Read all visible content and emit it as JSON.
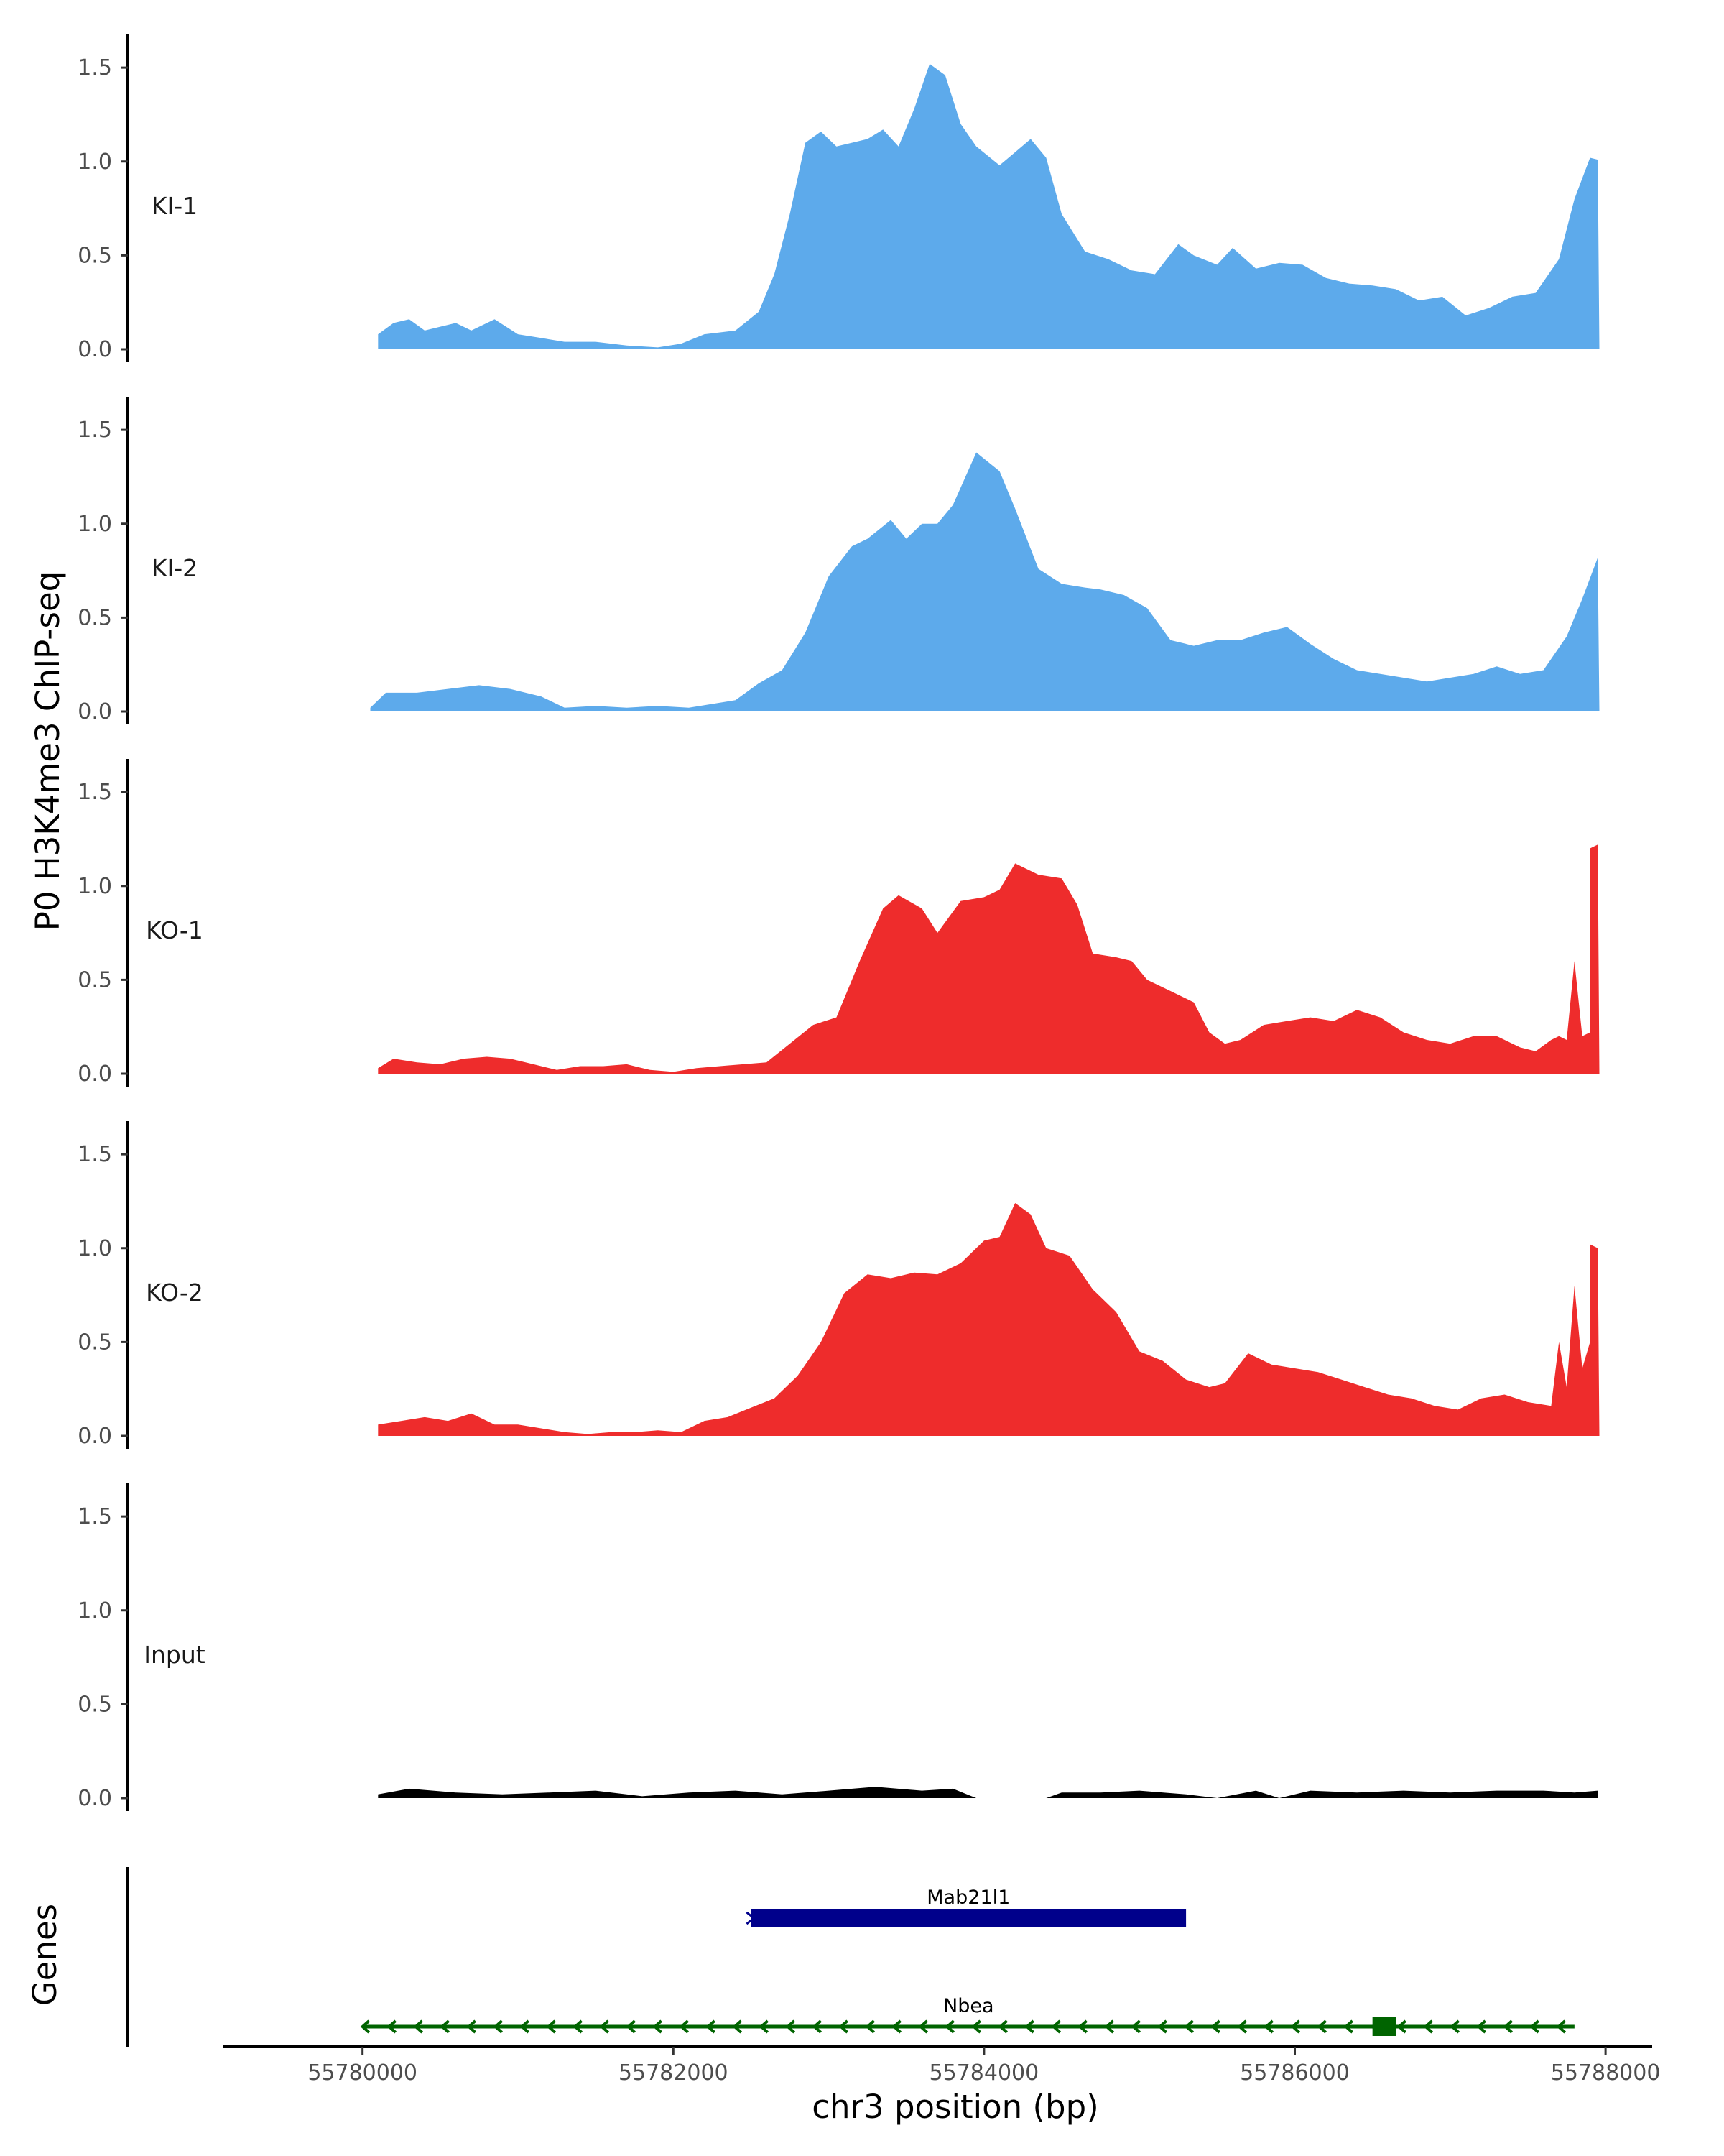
{
  "chart_data": {
    "type": "area",
    "ylabel": "P0 H3K4me3 ChIP-seq",
    "xlabel": "chr3 position (bp)",
    "gene_track_label": "Genes",
    "xlim": [
      55779100,
      55788300
    ],
    "ylim": [
      0,
      1.6
    ],
    "y_ticks": [
      0,
      0.5,
      1,
      1.5
    ],
    "y_tick_labels": [
      "0.0",
      "0.5",
      "1.0",
      "1.5"
    ],
    "x_ticks": [
      55780000,
      55782000,
      55784000,
      55786000,
      55788000
    ],
    "x_tick_labels": [
      "55780000",
      "55782000",
      "55784000",
      "55786000",
      "55788000"
    ],
    "grid": false,
    "tracks": [
      {
        "name": "KI-1",
        "color": "#5DAAEB",
        "points": [
          [
            55780100,
            0.08
          ],
          [
            55780200,
            0.14
          ],
          [
            55780300,
            0.16
          ],
          [
            55780400,
            0.1
          ],
          [
            55780500,
            0.12
          ],
          [
            55780600,
            0.14
          ],
          [
            55780700,
            0.1
          ],
          [
            55780850,
            0.16
          ],
          [
            55781000,
            0.08
          ],
          [
            55781150,
            0.06
          ],
          [
            55781300,
            0.04
          ],
          [
            55781500,
            0.04
          ],
          [
            55781700,
            0.02
          ],
          [
            55781900,
            0.01
          ],
          [
            55782050,
            0.03
          ],
          [
            55782200,
            0.08
          ],
          [
            55782400,
            0.1
          ],
          [
            55782550,
            0.2
          ],
          [
            55782650,
            0.4
          ],
          [
            55782750,
            0.72
          ],
          [
            55782850,
            1.1
          ],
          [
            55782950,
            1.16
          ],
          [
            55783050,
            1.08
          ],
          [
            55783150,
            1.1
          ],
          [
            55783250,
            1.12
          ],
          [
            55783350,
            1.17
          ],
          [
            55783450,
            1.08
          ],
          [
            55783550,
            1.28
          ],
          [
            55783650,
            1.52
          ],
          [
            55783750,
            1.46
          ],
          [
            55783850,
            1.2
          ],
          [
            55783950,
            1.08
          ],
          [
            55784100,
            0.98
          ],
          [
            55784200,
            1.05
          ],
          [
            55784300,
            1.12
          ],
          [
            55784400,
            1.02
          ],
          [
            55784500,
            0.72
          ],
          [
            55784650,
            0.52
          ],
          [
            55784800,
            0.48
          ],
          [
            55784950,
            0.42
          ],
          [
            55785100,
            0.4
          ],
          [
            55785250,
            0.56
          ],
          [
            55785350,
            0.5
          ],
          [
            55785500,
            0.45
          ],
          [
            55785600,
            0.54
          ],
          [
            55785750,
            0.43
          ],
          [
            55785900,
            0.46
          ],
          [
            55786050,
            0.45
          ],
          [
            55786200,
            0.38
          ],
          [
            55786350,
            0.35
          ],
          [
            55786500,
            0.34
          ],
          [
            55786650,
            0.32
          ],
          [
            55786800,
            0.26
          ],
          [
            55786950,
            0.28
          ],
          [
            55787100,
            0.18
          ],
          [
            55787250,
            0.22
          ],
          [
            55787400,
            0.28
          ],
          [
            55787550,
            0.3
          ],
          [
            55787700,
            0.48
          ],
          [
            55787800,
            0.8
          ],
          [
            55787900,
            1.02
          ],
          [
            55787950,
            1.01
          ],
          [
            55787960,
            0
          ]
        ]
      },
      {
        "name": "KI-2",
        "color": "#5DAAEB",
        "points": [
          [
            55780050,
            0.02
          ],
          [
            55780150,
            0.1
          ],
          [
            55780350,
            0.1
          ],
          [
            55780550,
            0.12
          ],
          [
            55780750,
            0.14
          ],
          [
            55780950,
            0.12
          ],
          [
            55781150,
            0.08
          ],
          [
            55781300,
            0.02
          ],
          [
            55781500,
            0.03
          ],
          [
            55781700,
            0.02
          ],
          [
            55781900,
            0.03
          ],
          [
            55782100,
            0.02
          ],
          [
            55782250,
            0.04
          ],
          [
            55782400,
            0.06
          ],
          [
            55782550,
            0.15
          ],
          [
            55782700,
            0.22
          ],
          [
            55782850,
            0.42
          ],
          [
            55783000,
            0.72
          ],
          [
            55783150,
            0.88
          ],
          [
            55783250,
            0.92
          ],
          [
            55783400,
            1.02
          ],
          [
            55783500,
            0.92
          ],
          [
            55783600,
            1.0
          ],
          [
            55783700,
            1.0
          ],
          [
            55783800,
            1.1
          ],
          [
            55783950,
            1.38
          ],
          [
            55784100,
            1.28
          ],
          [
            55784200,
            1.08
          ],
          [
            55784350,
            0.76
          ],
          [
            55784500,
            0.68
          ],
          [
            55784650,
            0.66
          ],
          [
            55784750,
            0.65
          ],
          [
            55784900,
            0.62
          ],
          [
            55785050,
            0.55
          ],
          [
            55785200,
            0.38
          ],
          [
            55785350,
            0.35
          ],
          [
            55785500,
            0.38
          ],
          [
            55785650,
            0.38
          ],
          [
            55785800,
            0.42
          ],
          [
            55785950,
            0.45
          ],
          [
            55786100,
            0.36
          ],
          [
            55786250,
            0.28
          ],
          [
            55786400,
            0.22
          ],
          [
            55786550,
            0.2
          ],
          [
            55786700,
            0.18
          ],
          [
            55786850,
            0.16
          ],
          [
            55787000,
            0.18
          ],
          [
            55787150,
            0.2
          ],
          [
            55787300,
            0.24
          ],
          [
            55787450,
            0.2
          ],
          [
            55787600,
            0.22
          ],
          [
            55787750,
            0.4
          ],
          [
            55787850,
            0.6
          ],
          [
            55787950,
            0.82
          ],
          [
            55787960,
            0
          ]
        ]
      },
      {
        "name": "KO-1",
        "color": "#EE2C2C",
        "points": [
          [
            55780100,
            0.03
          ],
          [
            55780200,
            0.08
          ],
          [
            55780350,
            0.06
          ],
          [
            55780500,
            0.05
          ],
          [
            55780650,
            0.08
          ],
          [
            55780800,
            0.09
          ],
          [
            55780950,
            0.08
          ],
          [
            55781100,
            0.05
          ],
          [
            55781250,
            0.02
          ],
          [
            55781400,
            0.04
          ],
          [
            55781550,
            0.04
          ],
          [
            55781700,
            0.05
          ],
          [
            55781850,
            0.02
          ],
          [
            55782000,
            0.01
          ],
          [
            55782150,
            0.03
          ],
          [
            55782300,
            0.04
          ],
          [
            55782450,
            0.05
          ],
          [
            55782600,
            0.06
          ],
          [
            55782750,
            0.16
          ],
          [
            55782900,
            0.26
          ],
          [
            55783050,
            0.3
          ],
          [
            55783200,
            0.6
          ],
          [
            55783350,
            0.88
          ],
          [
            55783450,
            0.95
          ],
          [
            55783600,
            0.88
          ],
          [
            55783700,
            0.75
          ],
          [
            55783850,
            0.92
          ],
          [
            55784000,
            0.94
          ],
          [
            55784100,
            0.98
          ],
          [
            55784200,
            1.12
          ],
          [
            55784350,
            1.06
          ],
          [
            55784500,
            1.04
          ],
          [
            55784600,
            0.9
          ],
          [
            55784700,
            0.64
          ],
          [
            55784850,
            0.62
          ],
          [
            55784950,
            0.6
          ],
          [
            55785050,
            0.5
          ],
          [
            55785200,
            0.44
          ],
          [
            55785350,
            0.38
          ],
          [
            55785450,
            0.22
          ],
          [
            55785550,
            0.16
          ],
          [
            55785650,
            0.18
          ],
          [
            55785800,
            0.26
          ],
          [
            55785950,
            0.28
          ],
          [
            55786100,
            0.3
          ],
          [
            55786250,
            0.28
          ],
          [
            55786400,
            0.34
          ],
          [
            55786550,
            0.3
          ],
          [
            55786700,
            0.22
          ],
          [
            55786850,
            0.18
          ],
          [
            55787000,
            0.16
          ],
          [
            55787150,
            0.2
          ],
          [
            55787300,
            0.2
          ],
          [
            55787450,
            0.14
          ],
          [
            55787550,
            0.12
          ],
          [
            55787650,
            0.18
          ],
          [
            55787750,
            0.18
          ],
          [
            55787850,
            0.2
          ],
          [
            55787900,
            0.22
          ],
          [
            55787700,
            0.2
          ],
          [
            55787800,
            0.6
          ],
          [
            55787900,
            1.2
          ],
          [
            55787950,
            1.22
          ],
          [
            55787960,
            0
          ]
        ]
      },
      {
        "name": "KO-2",
        "color": "#EE2C2C",
        "points": [
          [
            55780100,
            0.06
          ],
          [
            55780250,
            0.08
          ],
          [
            55780400,
            0.1
          ],
          [
            55780550,
            0.08
          ],
          [
            55780700,
            0.12
          ],
          [
            55780850,
            0.06
          ],
          [
            55781000,
            0.06
          ],
          [
            55781150,
            0.04
          ],
          [
            55781300,
            0.02
          ],
          [
            55781450,
            0.01
          ],
          [
            55781600,
            0.02
          ],
          [
            55781750,
            0.02
          ],
          [
            55781900,
            0.03
          ],
          [
            55782050,
            0.02
          ],
          [
            55782200,
            0.08
          ],
          [
            55782350,
            0.1
          ],
          [
            55782500,
            0.15
          ],
          [
            55782650,
            0.2
          ],
          [
            55782800,
            0.32
          ],
          [
            55782950,
            0.5
          ],
          [
            55783100,
            0.76
          ],
          [
            55783250,
            0.86
          ],
          [
            55783400,
            0.84
          ],
          [
            55783550,
            0.87
          ],
          [
            55783700,
            0.86
          ],
          [
            55783850,
            0.92
          ],
          [
            55784000,
            1.04
          ],
          [
            55784100,
            1.06
          ],
          [
            55784200,
            1.24
          ],
          [
            55784300,
            1.18
          ],
          [
            55784400,
            1.0
          ],
          [
            55784550,
            0.96
          ],
          [
            55784700,
            0.78
          ],
          [
            55784850,
            0.66
          ],
          [
            55785000,
            0.45
          ],
          [
            55785150,
            0.4
          ],
          [
            55785300,
            0.3
          ],
          [
            55785450,
            0.26
          ],
          [
            55785550,
            0.28
          ],
          [
            55785700,
            0.44
          ],
          [
            55785850,
            0.38
          ],
          [
            55786000,
            0.36
          ],
          [
            55786150,
            0.34
          ],
          [
            55786300,
            0.3
          ],
          [
            55786450,
            0.26
          ],
          [
            55786600,
            0.22
          ],
          [
            55786750,
            0.2
          ],
          [
            55786900,
            0.16
          ],
          [
            55787050,
            0.14
          ],
          [
            55787200,
            0.2
          ],
          [
            55787350,
            0.22
          ],
          [
            55787500,
            0.18
          ],
          [
            55787650,
            0.16
          ],
          [
            55787750,
            0.26
          ],
          [
            55787850,
            0.36
          ],
          [
            55787900,
            0.5
          ],
          [
            55787700,
            0.5
          ],
          [
            55787800,
            0.8
          ],
          [
            55787900,
            1.02
          ],
          [
            55787950,
            1.0
          ],
          [
            55787960,
            0
          ]
        ]
      },
      {
        "name": "Input",
        "color": "#000000",
        "points": [
          [
            55780100,
            0.02
          ],
          [
            55780300,
            0.05
          ],
          [
            55780600,
            0.03
          ],
          [
            55780900,
            0.02
          ],
          [
            55781200,
            0.03
          ],
          [
            55781500,
            0.04
          ],
          [
            55781800,
            0.01
          ],
          [
            55782100,
            0.03
          ],
          [
            55782400,
            0.04
          ],
          [
            55782700,
            0.02
          ],
          [
            55783000,
            0.04
          ],
          [
            55783300,
            0.06
          ],
          [
            55783600,
            0.04
          ],
          [
            55783800,
            0.05
          ],
          [
            55783950,
            0.0
          ],
          [
            55784150,
            0.0
          ],
          [
            55784400,
            0.0
          ],
          [
            55784500,
            0.03
          ],
          [
            55784750,
            0.03
          ],
          [
            55785000,
            0.04
          ],
          [
            55785300,
            0.02
          ],
          [
            55785500,
            0.0
          ],
          [
            55785750,
            0.04
          ],
          [
            55785900,
            0.0
          ],
          [
            55786100,
            0.04
          ],
          [
            55786400,
            0.03
          ],
          [
            55786700,
            0.04
          ],
          [
            55787000,
            0.03
          ],
          [
            55787300,
            0.04
          ],
          [
            55787600,
            0.04
          ],
          [
            55787800,
            0.03
          ],
          [
            55787950,
            0.04
          ]
        ]
      }
    ],
    "genes": [
      {
        "name": "Mab21l1",
        "start": 55782500,
        "end": 55785300,
        "strand": "-",
        "color": "#00008B",
        "row": 0
      },
      {
        "name": "Nbea",
        "start": 55780000,
        "end": 55787800,
        "strand": "-",
        "color": "#006400",
        "row": 1,
        "exon_start": 55786500,
        "exon_end": 55786650
      }
    ]
  }
}
